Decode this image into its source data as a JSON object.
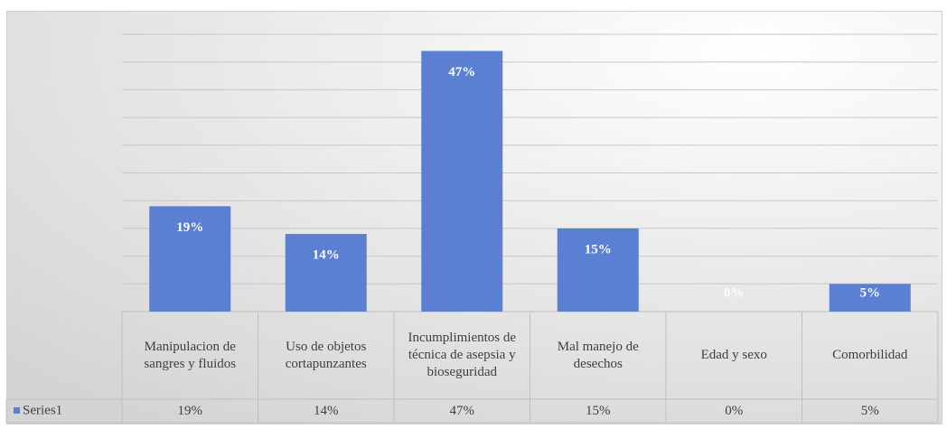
{
  "chart_data": {
    "type": "bar",
    "categories": [
      "Manipulacion de sangres y fluidos",
      "Uso de objetos cortapunzantes",
      "Incumplimientos de técnica de asepsia y bioseguridad",
      "Mal manejo de desechos",
      "Edad y sexo",
      "Comorbilidad"
    ],
    "series": [
      {
        "name": "Series1",
        "color": "#5b7fd1",
        "values": [
          19,
          14,
          47,
          15,
          0,
          5
        ],
        "value_labels": [
          "19%",
          "14%",
          "47%",
          "15%",
          "0%",
          "5%"
        ]
      }
    ],
    "ylim": [
      0,
      50
    ],
    "yticks": [
      0,
      5,
      10,
      15,
      20,
      25,
      30,
      35,
      40,
      45,
      50
    ],
    "grid": true
  }
}
